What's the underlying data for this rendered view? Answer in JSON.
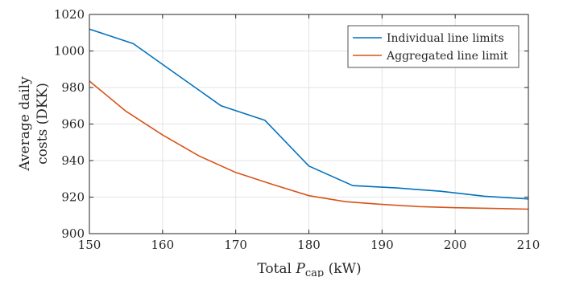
{
  "chart_data": {
    "type": "line",
    "xlabel_prefix": "Total ",
    "xlabel_var": "P",
    "xlabel_sub": "cap",
    "xlabel_suffix": " (kW)",
    "ylabel_line1": "Average daily",
    "ylabel_line2": "costs (DKK)",
    "xlim": [
      150,
      210
    ],
    "ylim": [
      900,
      1020
    ],
    "x_ticks": [
      150,
      160,
      170,
      180,
      190,
      200,
      210
    ],
    "y_ticks": [
      900,
      920,
      940,
      960,
      980,
      1000,
      1020
    ],
    "grid": true,
    "legend_position": "top-right",
    "series": [
      {
        "name": "Individual line limits",
        "color": "#0072BD",
        "x": [
          150,
          156,
          162,
          168,
          174,
          180,
          186,
          192,
          198,
          204,
          210
        ],
        "y": [
          1012,
          1004,
          987,
          970,
          962,
          937,
          926.3,
          925,
          923.2,
          920.5,
          919
        ]
      },
      {
        "name": "Aggregated line limit",
        "color": "#D95319",
        "x": [
          150,
          155,
          160,
          165,
          170,
          175,
          180,
          185,
          190,
          195,
          200,
          205,
          210
        ],
        "y": [
          983.5,
          967,
          954,
          942.5,
          933.5,
          927,
          920.8,
          917.5,
          916,
          914.8,
          914.2,
          913.8,
          913.4
        ]
      }
    ]
  }
}
